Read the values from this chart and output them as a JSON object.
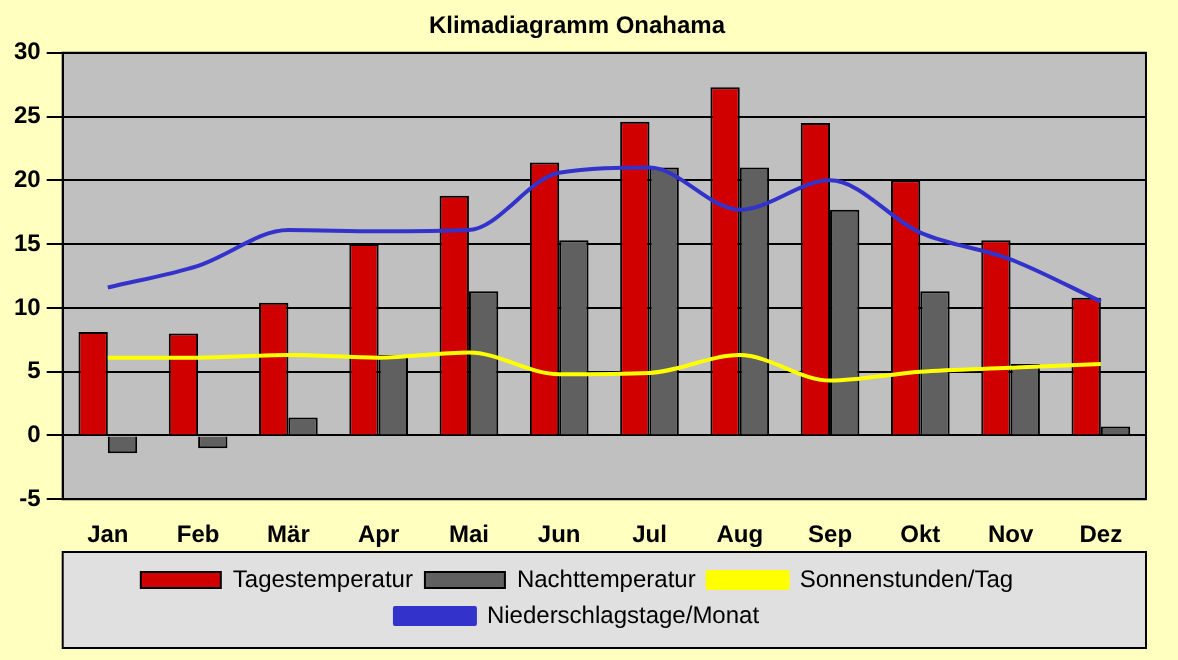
{
  "chart_data": {
    "type": "bar",
    "title": "Klimadiagramm Onahama",
    "categories": [
      "Jan",
      "Feb",
      "Mär",
      "Apr",
      "Mai",
      "Jun",
      "Jul",
      "Aug",
      "Sep",
      "Okt",
      "Nov",
      "Dez"
    ],
    "series": [
      {
        "name": "Tagestemperatur",
        "color": "#d00000",
        "values": [
          8.1,
          8.0,
          10.4,
          15.0,
          18.8,
          21.4,
          24.6,
          27.3,
          24.5,
          20.0,
          15.3,
          10.8
        ]
      },
      {
        "name": "Nachttemperatur",
        "color": "#606060",
        "values": [
          -1.4,
          -1.0,
          1.4,
          6.3,
          11.3,
          15.3,
          21.0,
          21.0,
          17.7,
          11.3,
          5.6,
          0.7
        ]
      },
      {
        "name": "Sonnenstunden/Tag",
        "type": "line",
        "color": "#ffff00",
        "values": [
          6.1,
          6.1,
          6.3,
          6.1,
          6.5,
          4.8,
          4.9,
          6.3,
          4.3,
          5.0,
          5.3,
          5.6
        ]
      },
      {
        "name": "Niederschlagstage/Monat",
        "type": "line",
        "color": "#3333cc",
        "values": [
          11.6,
          13.3,
          16.1,
          16.0,
          16.1,
          20.6,
          21.0,
          17.7,
          20.0,
          15.9,
          13.8,
          10.5
        ]
      }
    ],
    "ylim": [
      -5,
      30
    ],
    "yticks": [
      -5,
      0,
      5,
      10,
      15,
      20,
      25,
      30
    ],
    "grid": "y",
    "legend": "bottom",
    "marker": "none"
  }
}
